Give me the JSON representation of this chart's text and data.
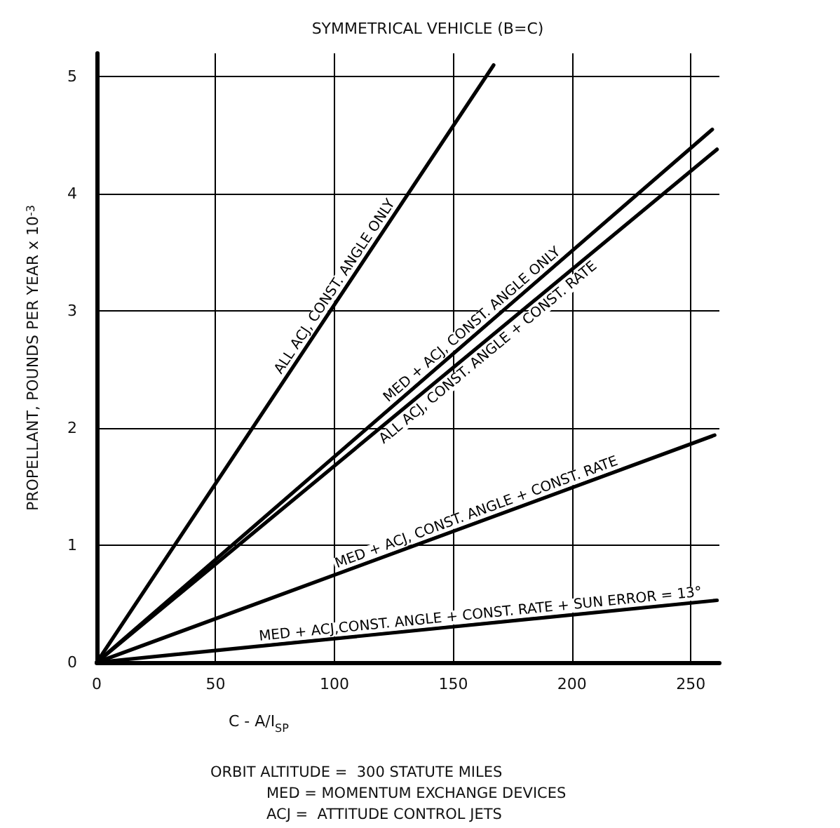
{
  "chart_data": {
    "type": "line",
    "title": "SYMMETRICAL VEHICLE (B=C)",
    "xlabel": "C - A/I$_{SP}$",
    "ylabel": "PROPELLANT, POUNDS PER YEAR x 10$^{-3}$",
    "xlim": [
      0,
      262
    ],
    "xticks": [
      0,
      50,
      100,
      150,
      200,
      250
    ],
    "ylim": [
      0,
      5.2
    ],
    "yticks": [
      0,
      1,
      2,
      3,
      4,
      5
    ],
    "grid": true,
    "legend": false,
    "marker": "none",
    "line_style": "solid",
    "series": [
      {
        "name": "ALL ACJ, CONST. ANGLE ONLY",
        "color": "#000000",
        "x": [
          0,
          167
        ],
        "values": [
          0,
          5.1
        ]
      },
      {
        "name": "MED + ACJ, CONST. ANGLE ONLY",
        "color": "#000000",
        "x": [
          0,
          259
        ],
        "values": [
          0,
          4.55
        ]
      },
      {
        "name": "ALL ACJ, CONST. ANGLE + CONST. RATE",
        "color": "#000000",
        "x": [
          0,
          261
        ],
        "values": [
          0,
          4.38
        ]
      },
      {
        "name": "MED + ACJ, CONST. ANGLE + CONST. RATE",
        "color": "#000000",
        "x": [
          0,
          260
        ],
        "values": [
          0,
          1.94
        ]
      },
      {
        "name": "MED + ACJ,CONST. ANGLE + CONST. RATE + SUN ERROR = 13°",
        "color": "#000000",
        "x": [
          0,
          261
        ],
        "values": [
          0,
          0.53
        ]
      }
    ],
    "annotations": [
      "ORBIT ALTITUDE =  300 STATUTE MILES",
      "MED = MOMENTUM EXCHANGE DEVICES",
      "ACJ =  ATTITUDE CONTROL JETS"
    ]
  }
}
